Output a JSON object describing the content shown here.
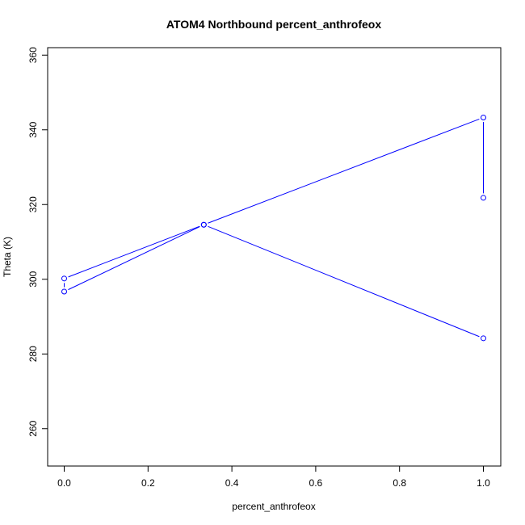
{
  "chart_data": {
    "type": "line",
    "title": "ATOM4 Northbound percent_anthrofeox",
    "xlabel": "percent_anthrofeox",
    "ylabel": "Theta (K)",
    "xlim": [
      0.0,
      1.0
    ],
    "ylim": [
      250,
      362
    ],
    "x_ticks": [
      "0.0",
      "0.2",
      "0.4",
      "0.6",
      "0.8",
      "1.0"
    ],
    "y_ticks": [
      "260",
      "280",
      "300",
      "320",
      "340",
      "360"
    ],
    "grid": false,
    "series": [
      {
        "color": "#0000ff",
        "marker": "open-circle",
        "x": [
          1.0,
          1.0,
          0.333,
          0.0,
          0.0,
          0.333,
          1.0
        ],
        "y": [
          321.8,
          343.3,
          314.6,
          300.2,
          296.7,
          314.6,
          284.2
        ]
      }
    ]
  }
}
